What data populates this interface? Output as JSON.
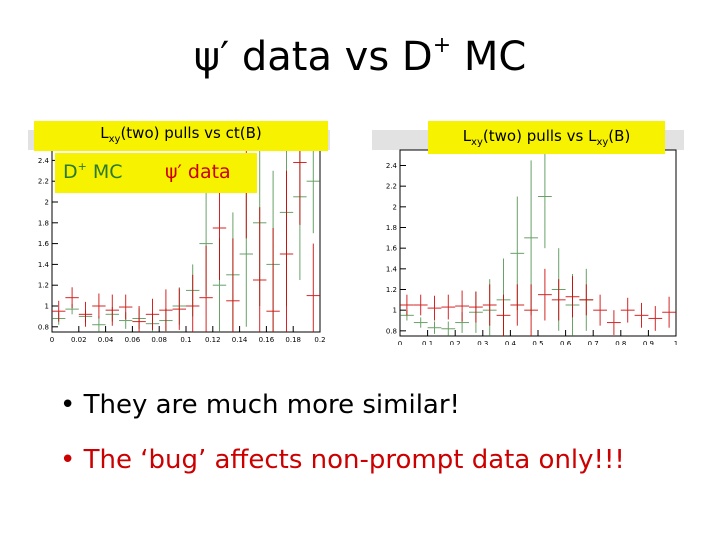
{
  "title": {
    "psi": "ψ′",
    "text": " data vs D",
    "sup": "+",
    "tail": " MC"
  },
  "legend": {
    "mc": {
      "main": "D",
      "sup": "+",
      "tail": " MC",
      "color": "#2a7a2a"
    },
    "data": {
      "text": "ψ′ data",
      "color": "#cc0000"
    }
  },
  "bullets": [
    {
      "text": "• They are much more similar!",
      "color": "#000000"
    },
    {
      "text": "• The ‘bug’ affects non-prompt data only!!!",
      "color": "#cc0000"
    }
  ],
  "chart_data": [
    {
      "type": "scatter",
      "title": "Lxy(two) pulls vs ct(B)",
      "title_parts": {
        "a": "L",
        "sub": "xy",
        "b": "(two) pulls vs ct(B)"
      },
      "xlim": [
        0,
        0.2
      ],
      "ylim": [
        0.75,
        2.5
      ],
      "x_ticks": [
        0,
        0.02,
        0.04,
        0.06,
        0.08,
        0.1,
        0.12,
        0.14,
        0.16,
        0.18,
        0.2
      ],
      "x_tick_labels": [
        "0",
        "0.02",
        "0.04",
        "0.06",
        "0.08",
        "0.1",
        "0.12",
        "0.14",
        "0.16",
        "0.18",
        "0.2"
      ],
      "y_ticks": [
        0.8,
        1,
        1.2,
        1.4,
        1.6,
        1.8,
        2,
        2.2,
        2.4
      ],
      "y_tick_labels": [
        "0.8",
        "1",
        "1.2",
        "1.4",
        "1.6",
        "1.8",
        "2",
        "2.2",
        "2.4"
      ],
      "series": [
        {
          "name": "D+ MC",
          "color": "#2a7a2a",
          "points": [
            {
              "x": 0.005,
              "y": 0.88,
              "xerr": 0.005,
              "yerr": 0.06
            },
            {
              "x": 0.015,
              "y": 0.97,
              "xerr": 0.005,
              "yerr": 0.05
            },
            {
              "x": 0.025,
              "y": 0.9,
              "xerr": 0.005,
              "yerr": 0.06
            },
            {
              "x": 0.035,
              "y": 0.82,
              "xerr": 0.005,
              "yerr": 0.08
            },
            {
              "x": 0.045,
              "y": 0.92,
              "xerr": 0.005,
              "yerr": 0.07
            },
            {
              "x": 0.055,
              "y": 0.86,
              "xerr": 0.005,
              "yerr": 0.08
            },
            {
              "x": 0.065,
              "y": 0.88,
              "xerr": 0.005,
              "yerr": 0.1
            },
            {
              "x": 0.075,
              "y": 0.83,
              "xerr": 0.005,
              "yerr": 0.1
            },
            {
              "x": 0.085,
              "y": 0.86,
              "xerr": 0.005,
              "yerr": 0.12
            },
            {
              "x": 0.095,
              "y": 1.0,
              "xerr": 0.005,
              "yerr": 0.18
            },
            {
              "x": 0.105,
              "y": 1.15,
              "xerr": 0.005,
              "yerr": 0.25
            },
            {
              "x": 0.115,
              "y": 1.6,
              "xerr": 0.005,
              "yerr": 0.5
            },
            {
              "x": 0.125,
              "y": 1.2,
              "xerr": 0.005,
              "yerr": 0.45
            },
            {
              "x": 0.135,
              "y": 1.3,
              "xerr": 0.005,
              "yerr": 0.6
            },
            {
              "x": 0.145,
              "y": 1.5,
              "xerr": 0.005,
              "yerr": 0.7
            },
            {
              "x": 0.155,
              "y": 1.8,
              "xerr": 0.005,
              "yerr": 0.8
            },
            {
              "x": 0.165,
              "y": 1.4,
              "xerr": 0.005,
              "yerr": 0.9
            },
            {
              "x": 0.175,
              "y": 1.9,
              "xerr": 0.005,
              "yerr": 0.9
            },
            {
              "x": 0.185,
              "y": 2.05,
              "xerr": 0.005,
              "yerr": 0.8
            },
            {
              "x": 0.195,
              "y": 2.2,
              "xerr": 0.005,
              "yerr": 0.5
            }
          ]
        },
        {
          "name": "ψ′ data",
          "color": "#cc0000",
          "points": [
            {
              "x": 0.005,
              "y": 0.95,
              "xerr": 0.005,
              "yerr": 0.1
            },
            {
              "x": 0.015,
              "y": 1.08,
              "xerr": 0.005,
              "yerr": 0.1
            },
            {
              "x": 0.025,
              "y": 0.92,
              "xerr": 0.005,
              "yerr": 0.12
            },
            {
              "x": 0.035,
              "y": 1.0,
              "xerr": 0.005,
              "yerr": 0.12
            },
            {
              "x": 0.045,
              "y": 0.96,
              "xerr": 0.005,
              "yerr": 0.15
            },
            {
              "x": 0.055,
              "y": 0.99,
              "xerr": 0.005,
              "yerr": 0.12
            },
            {
              "x": 0.065,
              "y": 0.85,
              "xerr": 0.005,
              "yerr": 0.15
            },
            {
              "x": 0.075,
              "y": 0.92,
              "xerr": 0.005,
              "yerr": 0.15
            },
            {
              "x": 0.085,
              "y": 0.96,
              "xerr": 0.005,
              "yerr": 0.2
            },
            {
              "x": 0.095,
              "y": 0.97,
              "xerr": 0.005,
              "yerr": 0.2
            },
            {
              "x": 0.105,
              "y": 1.0,
              "xerr": 0.005,
              "yerr": 0.3
            },
            {
              "x": 0.115,
              "y": 1.08,
              "xerr": 0.005,
              "yerr": 0.5
            },
            {
              "x": 0.125,
              "y": 1.75,
              "xerr": 0.005,
              "yerr": 0.5
            },
            {
              "x": 0.135,
              "y": 1.05,
              "xerr": 0.005,
              "yerr": 0.6
            },
            {
              "x": 0.145,
              "y": 2.25,
              "xerr": 0.005,
              "yerr": 0.6
            },
            {
              "x": 0.155,
              "y": 1.25,
              "xerr": 0.005,
              "yerr": 0.7
            },
            {
              "x": 0.165,
              "y": 0.95,
              "xerr": 0.005,
              "yerr": 0.8
            },
            {
              "x": 0.175,
              "y": 1.5,
              "xerr": 0.005,
              "yerr": 0.8
            },
            {
              "x": 0.185,
              "y": 2.38,
              "xerr": 0.005,
              "yerr": 0.6
            },
            {
              "x": 0.195,
              "y": 1.1,
              "xerr": 0.005,
              "yerr": 0.5
            }
          ]
        }
      ]
    },
    {
      "type": "scatter",
      "title": "Lxy(two) pulls vs Lxy(B)",
      "title_parts": {
        "a": "L",
        "sub": "xy",
        "b": "(two) pulls vs L",
        "sub2": "xy",
        "c": "(B)"
      },
      "xlim": [
        0,
        1
      ],
      "ylim": [
        0.75,
        2.55
      ],
      "x_ticks": [
        0,
        0.1,
        0.2,
        0.3,
        0.4,
        0.5,
        0.6,
        0.7,
        0.8,
        0.9,
        1
      ],
      "x_tick_labels": [
        "0",
        "0.1",
        "0.2",
        "0.3",
        "0.4",
        "0.5",
        "0.6",
        "0.7",
        "0.8",
        "0.9",
        "1"
      ],
      "y_ticks": [
        0.8,
        1,
        1.2,
        1.4,
        1.6,
        1.8,
        2,
        2.2,
        2.4
      ],
      "y_tick_labels": [
        "0.8",
        "1",
        "1.2",
        "1.4",
        "1.6",
        "1.8",
        "2",
        "2.2",
        "2.4"
      ],
      "series": [
        {
          "name": "D+ MC",
          "color": "#2a7a2a",
          "points": [
            {
              "x": 0.025,
              "y": 0.95,
              "xerr": 0.025,
              "yerr": 0.05
            },
            {
              "x": 0.075,
              "y": 0.88,
              "xerr": 0.025,
              "yerr": 0.05
            },
            {
              "x": 0.125,
              "y": 0.83,
              "xerr": 0.025,
              "yerr": 0.06
            },
            {
              "x": 0.175,
              "y": 0.82,
              "xerr": 0.025,
              "yerr": 0.07
            },
            {
              "x": 0.225,
              "y": 0.88,
              "xerr": 0.025,
              "yerr": 0.1
            },
            {
              "x": 0.275,
              "y": 0.98,
              "xerr": 0.025,
              "yerr": 0.2
            },
            {
              "x": 0.325,
              "y": 1.0,
              "xerr": 0.025,
              "yerr": 0.3
            },
            {
              "x": 0.375,
              "y": 1.1,
              "xerr": 0.025,
              "yerr": 0.4
            },
            {
              "x": 0.425,
              "y": 1.55,
              "xerr": 0.025,
              "yerr": 0.55
            },
            {
              "x": 0.475,
              "y": 1.7,
              "xerr": 0.025,
              "yerr": 0.75
            },
            {
              "x": 0.525,
              "y": 2.1,
              "xerr": 0.025,
              "yerr": 0.5
            },
            {
              "x": 0.575,
              "y": 1.2,
              "xerr": 0.025,
              "yerr": 0.4
            },
            {
              "x": 0.625,
              "y": 1.05,
              "xerr": 0.025,
              "yerr": 0.3
            },
            {
              "x": 0.675,
              "y": 1.1,
              "xerr": 0.025,
              "yerr": 0.3
            }
          ]
        },
        {
          "name": "ψ′ data",
          "color": "#cc0000",
          "points": [
            {
              "x": 0.025,
              "y": 1.05,
              "xerr": 0.025,
              "yerr": 0.1
            },
            {
              "x": 0.075,
              "y": 1.05,
              "xerr": 0.025,
              "yerr": 0.1
            },
            {
              "x": 0.125,
              "y": 1.02,
              "xerr": 0.025,
              "yerr": 0.12
            },
            {
              "x": 0.175,
              "y": 1.03,
              "xerr": 0.025,
              "yerr": 0.12
            },
            {
              "x": 0.225,
              "y": 1.04,
              "xerr": 0.025,
              "yerr": 0.15
            },
            {
              "x": 0.275,
              "y": 1.03,
              "xerr": 0.025,
              "yerr": 0.15
            },
            {
              "x": 0.325,
              "y": 1.05,
              "xerr": 0.025,
              "yerr": 0.2
            },
            {
              "x": 0.375,
              "y": 0.95,
              "xerr": 0.025,
              "yerr": 0.2
            },
            {
              "x": 0.425,
              "y": 1.05,
              "xerr": 0.025,
              "yerr": 0.2
            },
            {
              "x": 0.475,
              "y": 1.0,
              "xerr": 0.025,
              "yerr": 0.25
            },
            {
              "x": 0.525,
              "y": 1.15,
              "xerr": 0.025,
              "yerr": 0.25
            },
            {
              "x": 0.575,
              "y": 1.1,
              "xerr": 0.025,
              "yerr": 0.2
            },
            {
              "x": 0.625,
              "y": 1.13,
              "xerr": 0.025,
              "yerr": 0.2
            },
            {
              "x": 0.675,
              "y": 1.1,
              "xerr": 0.025,
              "yerr": 0.15
            },
            {
              "x": 0.725,
              "y": 1.0,
              "xerr": 0.025,
              "yerr": 0.15
            },
            {
              "x": 0.775,
              "y": 0.88,
              "xerr": 0.025,
              "yerr": 0.12
            },
            {
              "x": 0.825,
              "y": 1.0,
              "xerr": 0.025,
              "yerr": 0.12
            },
            {
              "x": 0.875,
              "y": 0.95,
              "xerr": 0.025,
              "yerr": 0.12
            },
            {
              "x": 0.925,
              "y": 0.92,
              "xerr": 0.025,
              "yerr": 0.12
            },
            {
              "x": 0.975,
              "y": 0.98,
              "xerr": 0.025,
              "yerr": 0.15
            }
          ]
        }
      ]
    }
  ]
}
